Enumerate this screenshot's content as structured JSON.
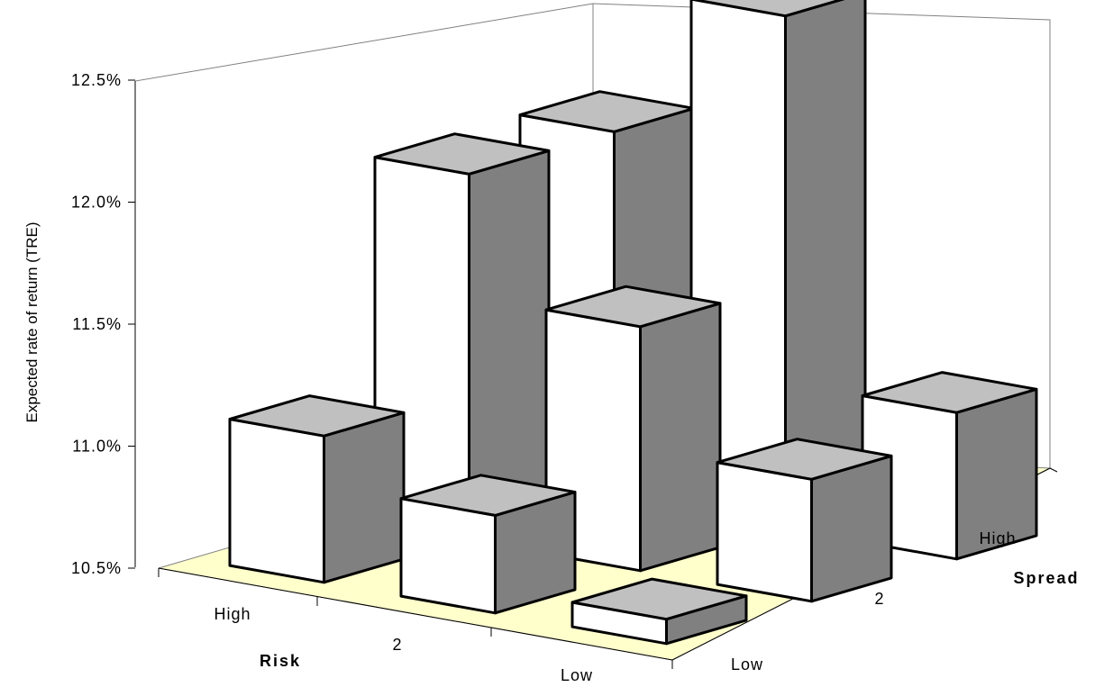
{
  "chart_data": {
    "type": "bar",
    "subtype": "3d-column-grid",
    "title": "",
    "ylabel": "Expected rate of return (TRE)",
    "x_axis": {
      "title": "Risk",
      "categories": [
        "High",
        "2",
        "Low"
      ]
    },
    "z_axis": {
      "title": "Spread",
      "categories": [
        "Low",
        "2",
        "High"
      ]
    },
    "y_axis": {
      "ticks": [
        "10.5%",
        "11.0%",
        "11.5%",
        "12.0%",
        "12.5%"
      ],
      "ylim": [
        10.5,
        12.5
      ],
      "unit": "%"
    },
    "series": [
      {
        "spread": "Low",
        "values": [
          11.1,
          10.9,
          10.6
        ]
      },
      {
        "spread": "2",
        "values": [
          12.0,
          11.5,
          11.0
        ]
      },
      {
        "spread": "High",
        "values": [
          12.0,
          12.6,
          11.1
        ]
      }
    ],
    "colors": {
      "front_face": "#ffffff",
      "top_face": "#c0c0c0",
      "side_face": "#808080",
      "floor": "#ffffcc",
      "edge": "#000000"
    },
    "grid": false,
    "legend": "none"
  }
}
